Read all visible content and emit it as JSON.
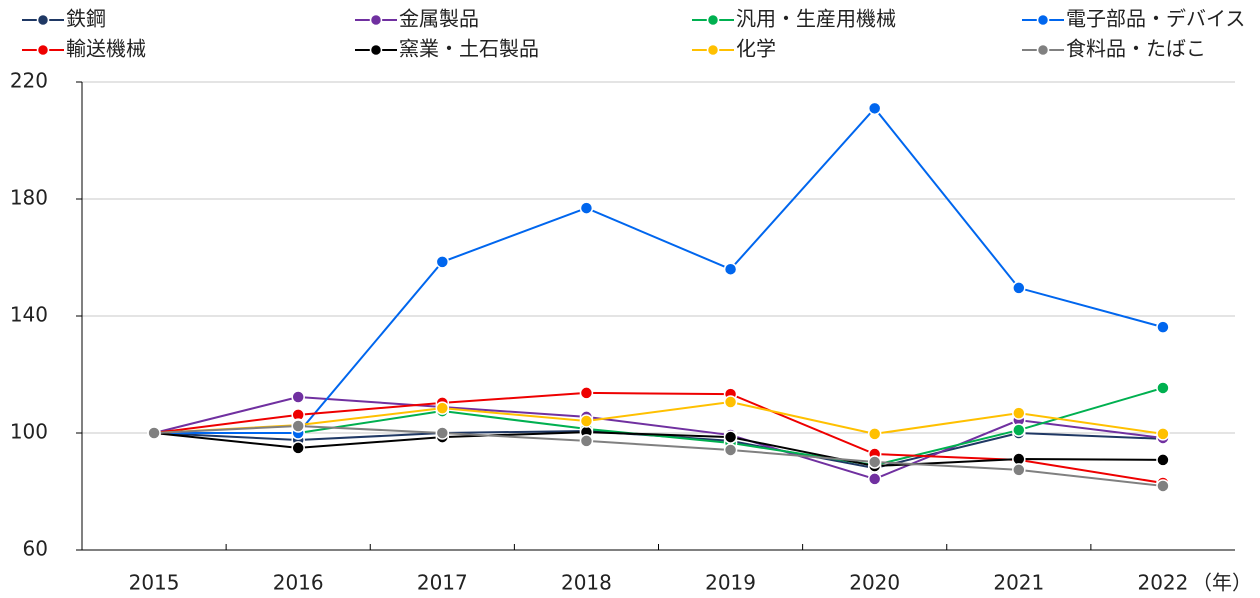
{
  "chart_data": {
    "type": "line",
    "xlabel": "（年）",
    "categories": [
      "2015",
      "2016",
      "2017",
      "2018",
      "2019",
      "2020",
      "2021",
      "2022"
    ],
    "ylim": [
      60,
      220
    ],
    "yticks": [
      60,
      100,
      140,
      180,
      220
    ],
    "grid": true,
    "legend": "top",
    "series": [
      {
        "name": "鉄鋼",
        "color": "#1f3864",
        "values": [
          100,
          97.6,
          100,
          100.7,
          97.3,
          88,
          100,
          98
        ]
      },
      {
        "name": "金属製品",
        "color": "#7030a0",
        "values": [
          100,
          112.3,
          108.9,
          105.5,
          99.3,
          84.3,
          104.4,
          98.3
        ]
      },
      {
        "name": "汎用・生産用機械",
        "color": "#00b050",
        "values": [
          100,
          100,
          107.5,
          101.4,
          96.6,
          89,
          101,
          115.4
        ]
      },
      {
        "name": "電子部品・デバイス",
        "color": "#0066ee",
        "values": [
          100,
          100,
          158.5,
          176.9,
          156,
          211,
          149.6,
          136.2
        ]
      },
      {
        "name": "輸送機械",
        "color": "#ee0000",
        "values": [
          100,
          106.2,
          110.3,
          113.7,
          113.3,
          92.8,
          90.8,
          82.9
        ]
      },
      {
        "name": "窯業・土石製品",
        "color": "#000000",
        "values": [
          100,
          94.9,
          98.6,
          100.3,
          98.6,
          88.7,
          91.1,
          90.8
        ]
      },
      {
        "name": "化学",
        "color": "#ffc000",
        "values": [
          100,
          102.7,
          108.5,
          104.1,
          110.6,
          99.7,
          106.8,
          99.7
        ]
      },
      {
        "name": "食料品・たばこ",
        "color": "#808080",
        "values": [
          100,
          102.4,
          100,
          97.3,
          94.2,
          90.1,
          87.4,
          81.9
        ]
      }
    ]
  }
}
